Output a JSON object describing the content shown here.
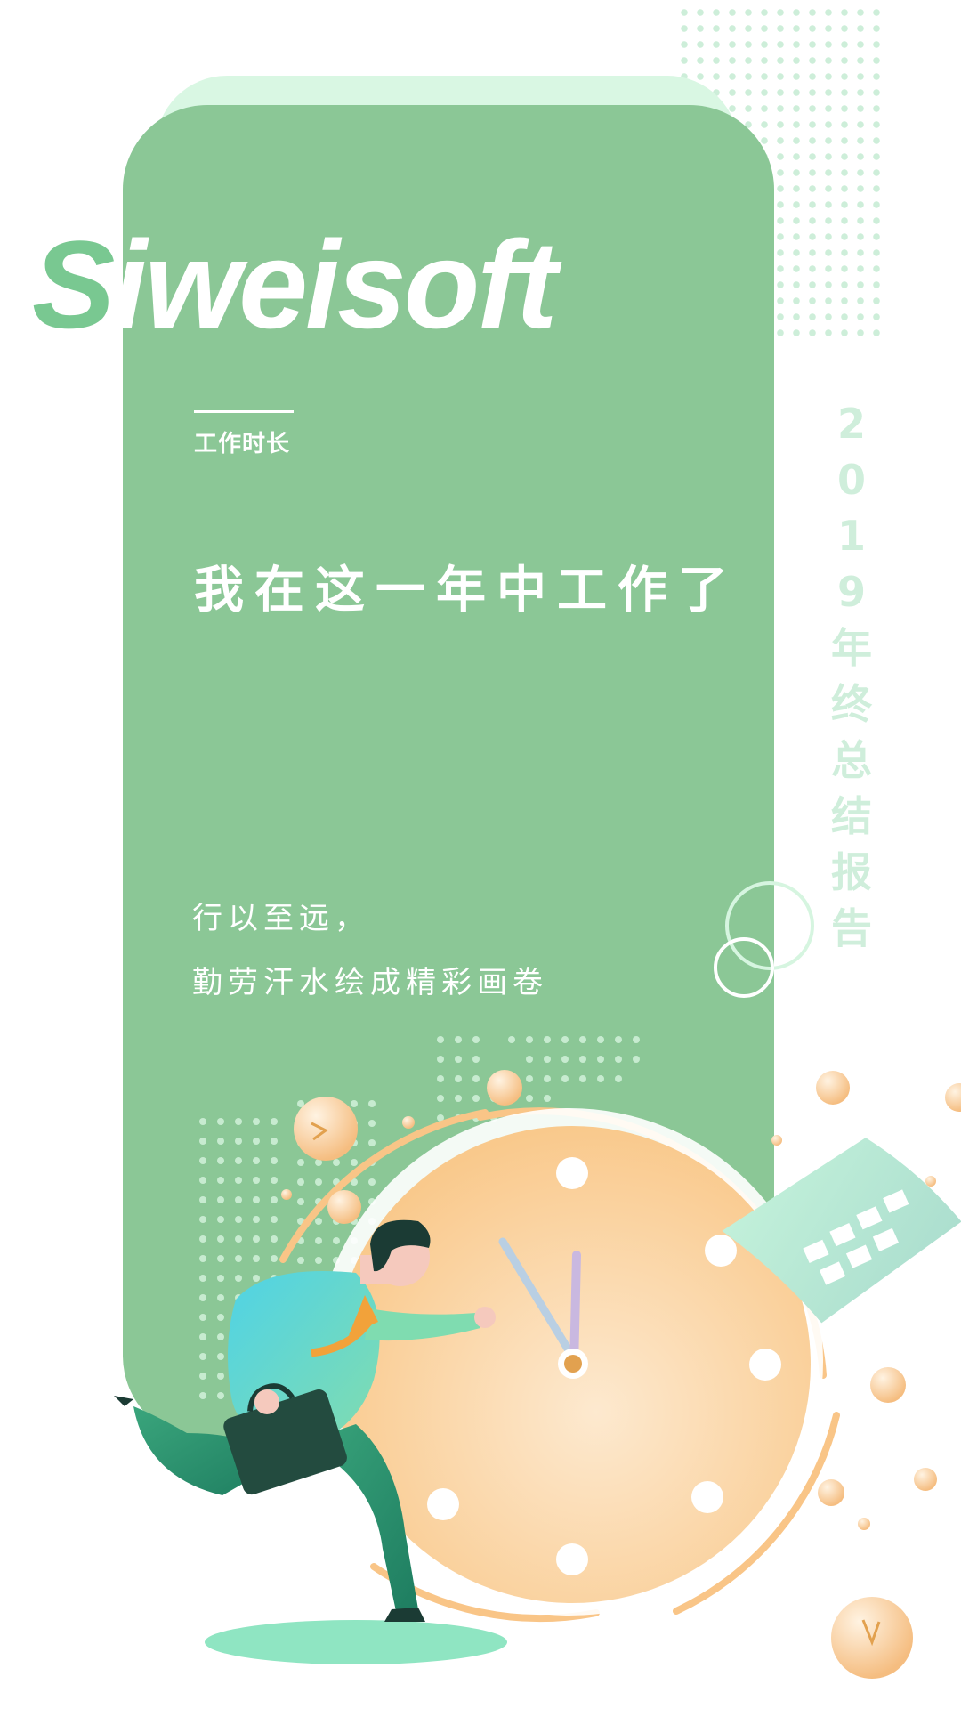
{
  "brand": {
    "first_letter": "S",
    "rest": "iweisoft"
  },
  "section_label": "工作时长",
  "headline": "我在这一年中工作了",
  "quote": {
    "line1": "行以至远，",
    "line2": "勤劳汗水绘成精彩画卷"
  },
  "vertical_title": "2019年终总结报告",
  "colors": {
    "card": "#8bc796",
    "card_back": "#d9f7e3",
    "accent_light": "#cfeedb",
    "clock_face": "#fbcf94"
  },
  "clock": {
    "hour": 11,
    "minute": 56
  }
}
